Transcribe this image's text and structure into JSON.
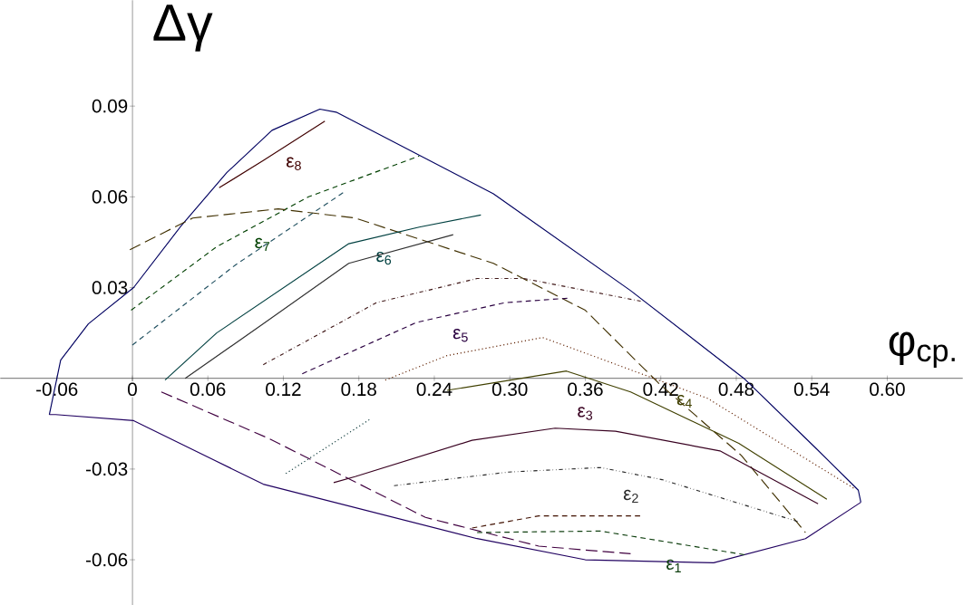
{
  "chart_data": {
    "type": "line",
    "xlabel": "φ$_{ср.}$",
    "ylabel": "Δγ",
    "xlim": [
      -0.105,
      0.66
    ],
    "ylim": [
      -0.075,
      0.125
    ],
    "xticks": [
      -0.06,
      0,
      0.06,
      0.12,
      0.18,
      0.24,
      {
        "value": 0.3,
        "label": "0.30"
      },
      0.36,
      0.42,
      0.48,
      0.54,
      {
        "value": 0.6,
        "label": "0.60"
      }
    ],
    "yticks": [
      -0.06,
      -0.03,
      0.03,
      0.06,
      0.09
    ],
    "grid": false,
    "marker": "none",
    "series": [
      {
        "color": "#000060",
        "line_style": "solid",
        "x": [
          -0.066,
          -0.057,
          -0.035,
          0.001,
          0.038,
          0.075,
          0.111,
          0.149,
          0.162,
          0.287,
          0.396,
          0.486,
          0.543,
          0.577,
          0.579
        ],
        "values": [
          -0.012,
          0.006,
          0.018,
          0.03,
          0.05,
          0.068,
          0.082,
          0.089,
          0.088,
          0.061,
          0.029,
          0.0,
          -0.023,
          -0.037,
          -0.041
        ]
      },
      {
        "color": "#200060",
        "line_style": "solid",
        "x": [
          -0.066,
          -0.061,
          0.001,
          0.104,
          0.274,
          0.36,
          0.462,
          0.535,
          0.579
        ],
        "values": [
          -0.012,
          -0.012,
          -0.014,
          -0.035,
          -0.053,
          -0.06,
          -0.061,
          -0.053,
          -0.041
        ]
      },
      {
        "name": "ε$_{8}$",
        "color": "#400000",
        "line_style": "solid",
        "x": [
          0.069,
          0.104,
          0.153
        ],
        "values": [
          0.063,
          0.072,
          0.085
        ]
      },
      {
        "name": "ε$_{7}$",
        "color": "#004000",
        "line_style": "dashed",
        "x": [
          -0.001,
          0.067,
          0.14,
          0.228
        ],
        "values": [
          0.0225,
          0.0435,
          0.06,
          0.0735
        ]
      },
      {
        "color": "#205060",
        "line_style": "dashed",
        "x": [
          0.0,
          0.082,
          0.168
        ],
        "values": [
          0.011,
          0.0375,
          0.0615
        ]
      },
      {
        "color": "#403000",
        "line_style": "longdashed",
        "x": [
          -0.002,
          0.048,
          0.116,
          0.177,
          0.287,
          0.36,
          0.418,
          0.484,
          0.535
        ],
        "values": [
          0.0425,
          0.053,
          0.056,
          0.053,
          0.038,
          0.0225,
          -0.0015,
          -0.0255,
          -0.051
        ]
      },
      {
        "color": "#400040",
        "line_style": "longdashed",
        "x": [
          0.023,
          0.109,
          0.233,
          0.323,
          0.396
        ],
        "values": [
          -0.0045,
          -0.02,
          -0.046,
          -0.0555,
          -0.058
        ]
      },
      {
        "name": "ε$_{6}$",
        "color": "#004040",
        "line_style": "solid",
        "x": [
          0.026,
          0.067,
          0.172,
          0.228,
          0.277
        ],
        "values": [
          -0.0006,
          0.015,
          0.0445,
          0.05,
          0.054
        ]
      },
      {
        "color": "#303030",
        "line_style": "solid",
        "x": [
          0.042,
          0.104,
          0.172,
          0.255
        ],
        "values": [
          0.0,
          0.018,
          0.038,
          0.0475
        ]
      },
      {
        "color": "#401818",
        "line_style": "dashdot",
        "x": [
          0.104,
          0.194,
          0.274,
          0.311,
          0.404
        ],
        "values": [
          0.0045,
          0.025,
          0.033,
          0.033,
          0.0255
        ]
      },
      {
        "name": "ε$_{5}$",
        "color": "#2a0040",
        "line_style": "dashed",
        "x": [
          0.135,
          0.226,
          0.296,
          0.347
        ],
        "values": [
          0.0015,
          0.0185,
          0.025,
          0.0265
        ]
      },
      {
        "color": "#602000",
        "line_style": "dotted",
        "x": [
          0.201,
          0.25,
          0.326,
          0.372,
          0.457,
          0.574
        ],
        "values": [
          -0.0006,
          0.0075,
          0.0135,
          0.0065,
          -0.0066,
          -0.0365
        ]
      },
      {
        "name": "ε$_{4}$",
        "color": "#404000",
        "line_style": "solid",
        "x": [
          0.25,
          0.345,
          0.396,
          0.482,
          0.552
        ],
        "values": [
          -0.004,
          0.0024,
          -0.0045,
          -0.0215,
          -0.04
        ]
      },
      {
        "name": "ε$_{3}$",
        "color": "#380020",
        "line_style": "solid",
        "x": [
          0.16,
          0.177,
          0.27,
          0.336,
          0.384,
          0.467,
          0.545
        ],
        "values": [
          -0.0345,
          -0.0325,
          -0.0205,
          -0.0165,
          -0.0175,
          -0.024,
          -0.0415
        ]
      },
      {
        "color": "#003030",
        "line_style": "dotted",
        "x": [
          0.122,
          0.189
        ],
        "values": [
          -0.0315,
          -0.0135
        ]
      },
      {
        "name": "ε$_{2}$",
        "color": "#282828",
        "line_style": "dashdotdot",
        "x": [
          0.208,
          0.299,
          0.372,
          0.421,
          0.53
        ],
        "values": [
          -0.0355,
          -0.031,
          -0.0295,
          -0.0335,
          -0.0475
        ]
      },
      {
        "color": "#401000",
        "line_style": "dashed",
        "x": [
          0.27,
          0.323,
          0.404
        ],
        "values": [
          -0.0495,
          -0.0455,
          -0.0455
        ]
      },
      {
        "name": "ε$_{1}$",
        "color": "#104010",
        "line_style": "dashed",
        "x": [
          0.274,
          0.372,
          0.489
        ],
        "values": [
          -0.051,
          -0.0505,
          -0.0585
        ]
      }
    ]
  }
}
